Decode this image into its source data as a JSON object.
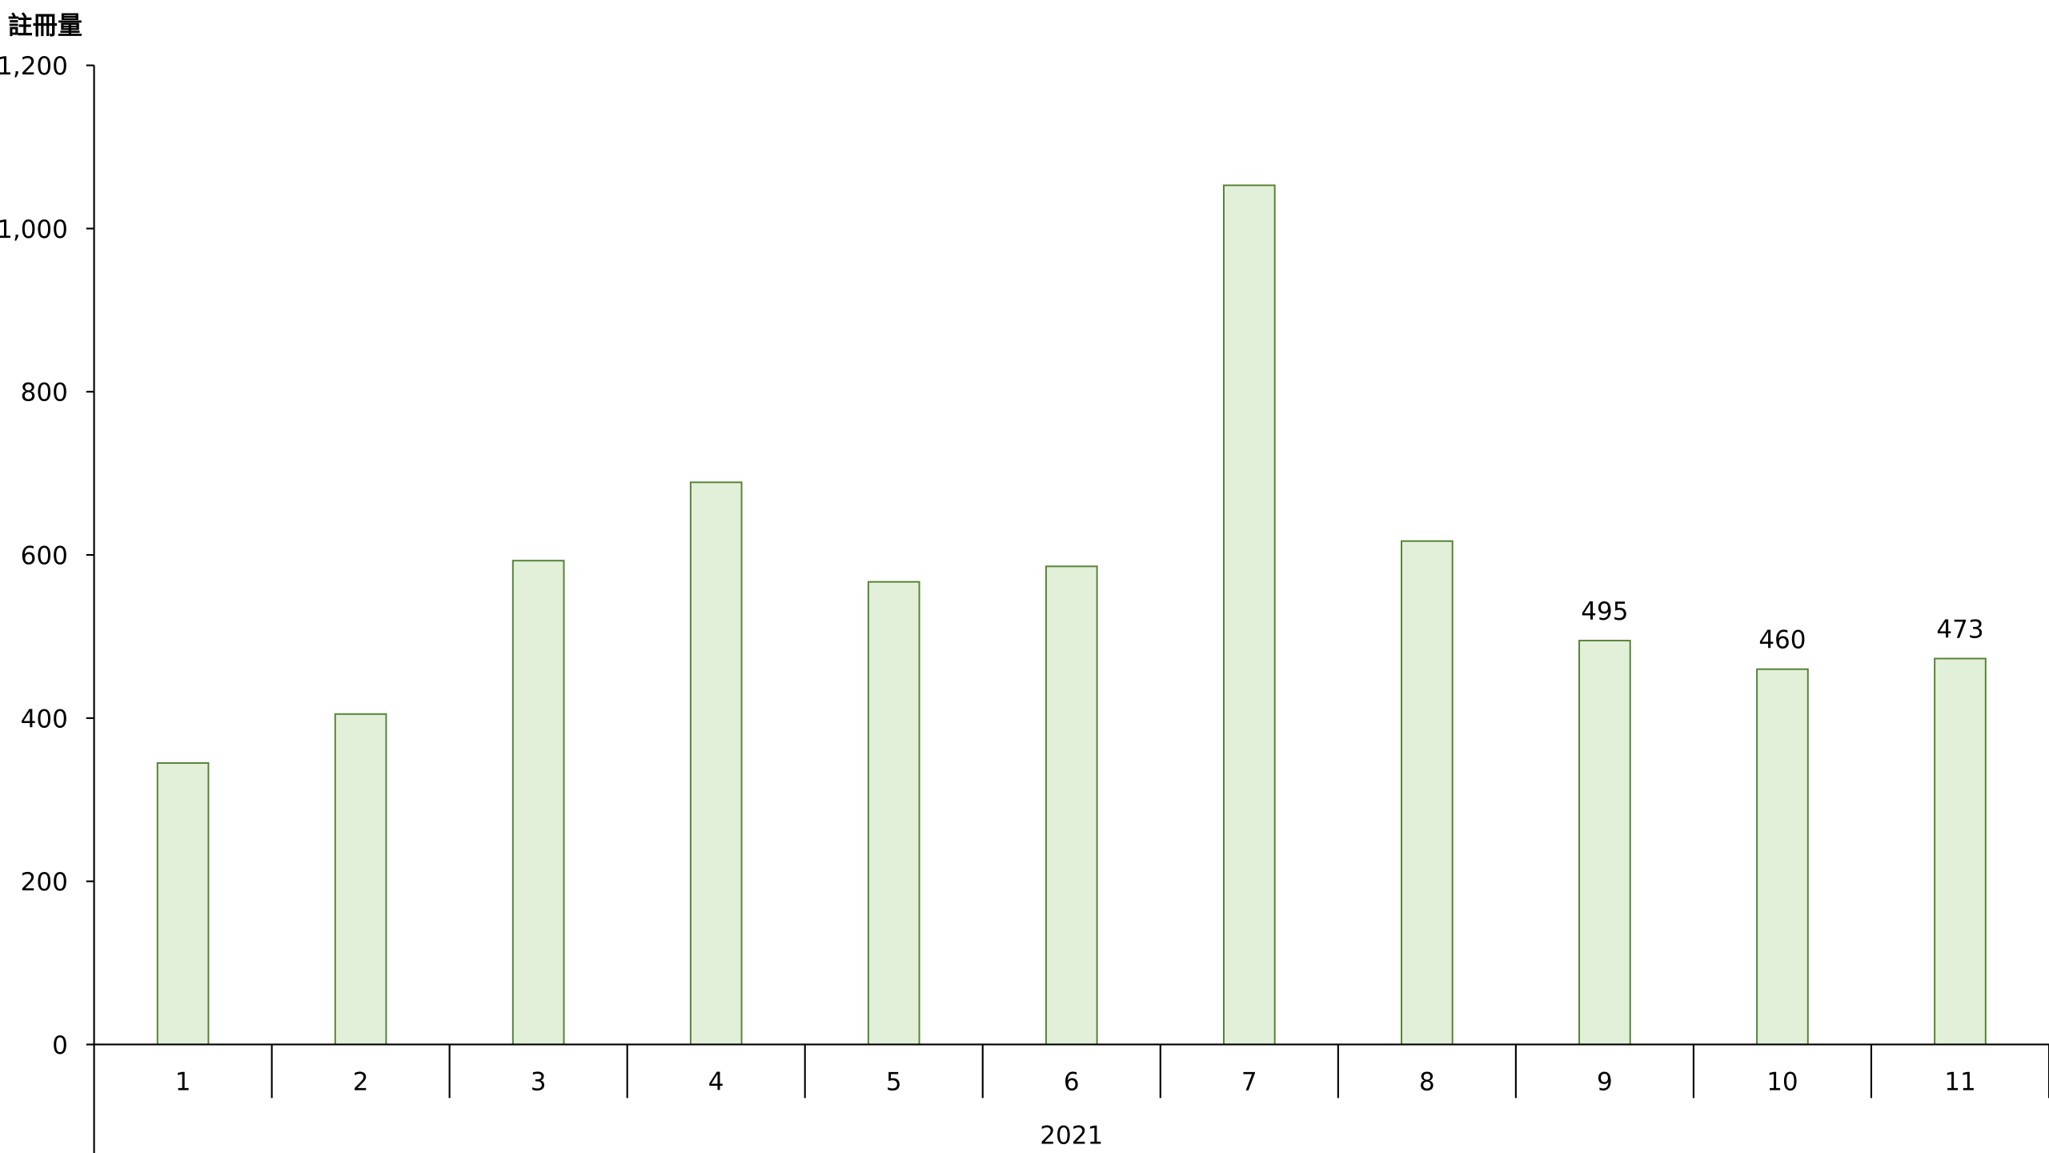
{
  "chart_data": {
    "type": "bar",
    "ylabel": "註冊量",
    "xgroup_label": "2021",
    "categories": [
      "1",
      "2",
      "3",
      "4",
      "5",
      "6",
      "7",
      "8",
      "9",
      "10",
      "11"
    ],
    "values": [
      345,
      405,
      593,
      689,
      567,
      586,
      1053,
      617,
      495,
      460,
      473
    ],
    "data_labels": {
      "8": "495",
      "9": "460",
      "10": "473"
    },
    "ylim": [
      0,
      1200
    ],
    "yticks": [
      "0",
      "200",
      "400",
      "600",
      "800",
      "1,000",
      "1,200"
    ],
    "grid": false,
    "colors": {
      "bar_fill": "#e2efd9",
      "bar_stroke": "#548235",
      "axis": "#000000"
    }
  }
}
